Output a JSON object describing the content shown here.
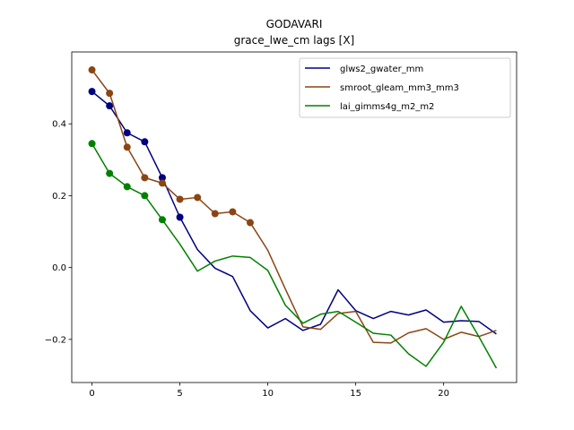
{
  "chart_data": {
    "type": "line",
    "title": "GODAVARI",
    "subtitle": "grace_lwe_cm lags [X]",
    "xlabel": "",
    "ylabel": "",
    "xlim": [
      -1.15,
      24.15
    ],
    "ylim": [
      -0.32,
      0.6
    ],
    "x_ticks": [
      0,
      5,
      10,
      15,
      20
    ],
    "y_ticks": [
      -0.2,
      0.0,
      0.2,
      0.4
    ],
    "y_tick_labels": [
      "−0.2",
      "0.0",
      "0.2",
      "0.4"
    ],
    "x_tick_labels": [
      "0",
      "5",
      "10",
      "15",
      "20"
    ],
    "legend_position": "top-right",
    "grid": false,
    "series": [
      {
        "name": "glws2_gwater_mm",
        "color": "#000080",
        "x": [
          0,
          1,
          2,
          3,
          4,
          5,
          6,
          7,
          8,
          9,
          10,
          11,
          12,
          13,
          14,
          15,
          16,
          17,
          18,
          19,
          20,
          21,
          22,
          23
        ],
        "values": [
          0.49,
          0.45,
          0.375,
          0.35,
          0.25,
          0.14,
          0.05,
          -0.002,
          -0.025,
          -0.12,
          -0.168,
          -0.142,
          -0.175,
          -0.158,
          -0.062,
          -0.12,
          -0.142,
          -0.122,
          -0.132,
          -0.118,
          -0.152,
          -0.148,
          -0.15,
          -0.185
        ],
        "marker_count": 6
      },
      {
        "name": "smroot_gleam_mm3_mm3",
        "color": "#8b4513",
        "x": [
          0,
          1,
          2,
          3,
          4,
          5,
          6,
          7,
          8,
          9,
          10,
          11,
          12,
          13,
          14,
          15,
          16,
          17,
          18,
          19,
          20,
          21,
          22,
          23
        ],
        "values": [
          0.55,
          0.485,
          0.335,
          0.25,
          0.235,
          0.19,
          0.195,
          0.15,
          0.155,
          0.125,
          0.048,
          -0.06,
          -0.165,
          -0.172,
          -0.128,
          -0.122,
          -0.208,
          -0.21,
          -0.182,
          -0.17,
          -0.2,
          -0.18,
          -0.192,
          -0.175
        ],
        "marker_count": 10
      },
      {
        "name": "lai_gimms4g_m2_m2",
        "color": "#008000",
        "x": [
          0,
          1,
          2,
          3,
          4,
          5,
          6,
          7,
          8,
          9,
          10,
          11,
          12,
          13,
          14,
          15,
          16,
          17,
          18,
          19,
          20,
          21,
          22,
          23
        ],
        "values": [
          0.345,
          0.262,
          0.225,
          0.2,
          0.133,
          0.065,
          -0.01,
          0.018,
          0.032,
          0.028,
          -0.008,
          -0.105,
          -0.155,
          -0.13,
          -0.122,
          -0.152,
          -0.183,
          -0.188,
          -0.24,
          -0.275,
          -0.208,
          -0.108,
          -0.192,
          -0.28
        ],
        "marker_count": 5
      }
    ]
  }
}
